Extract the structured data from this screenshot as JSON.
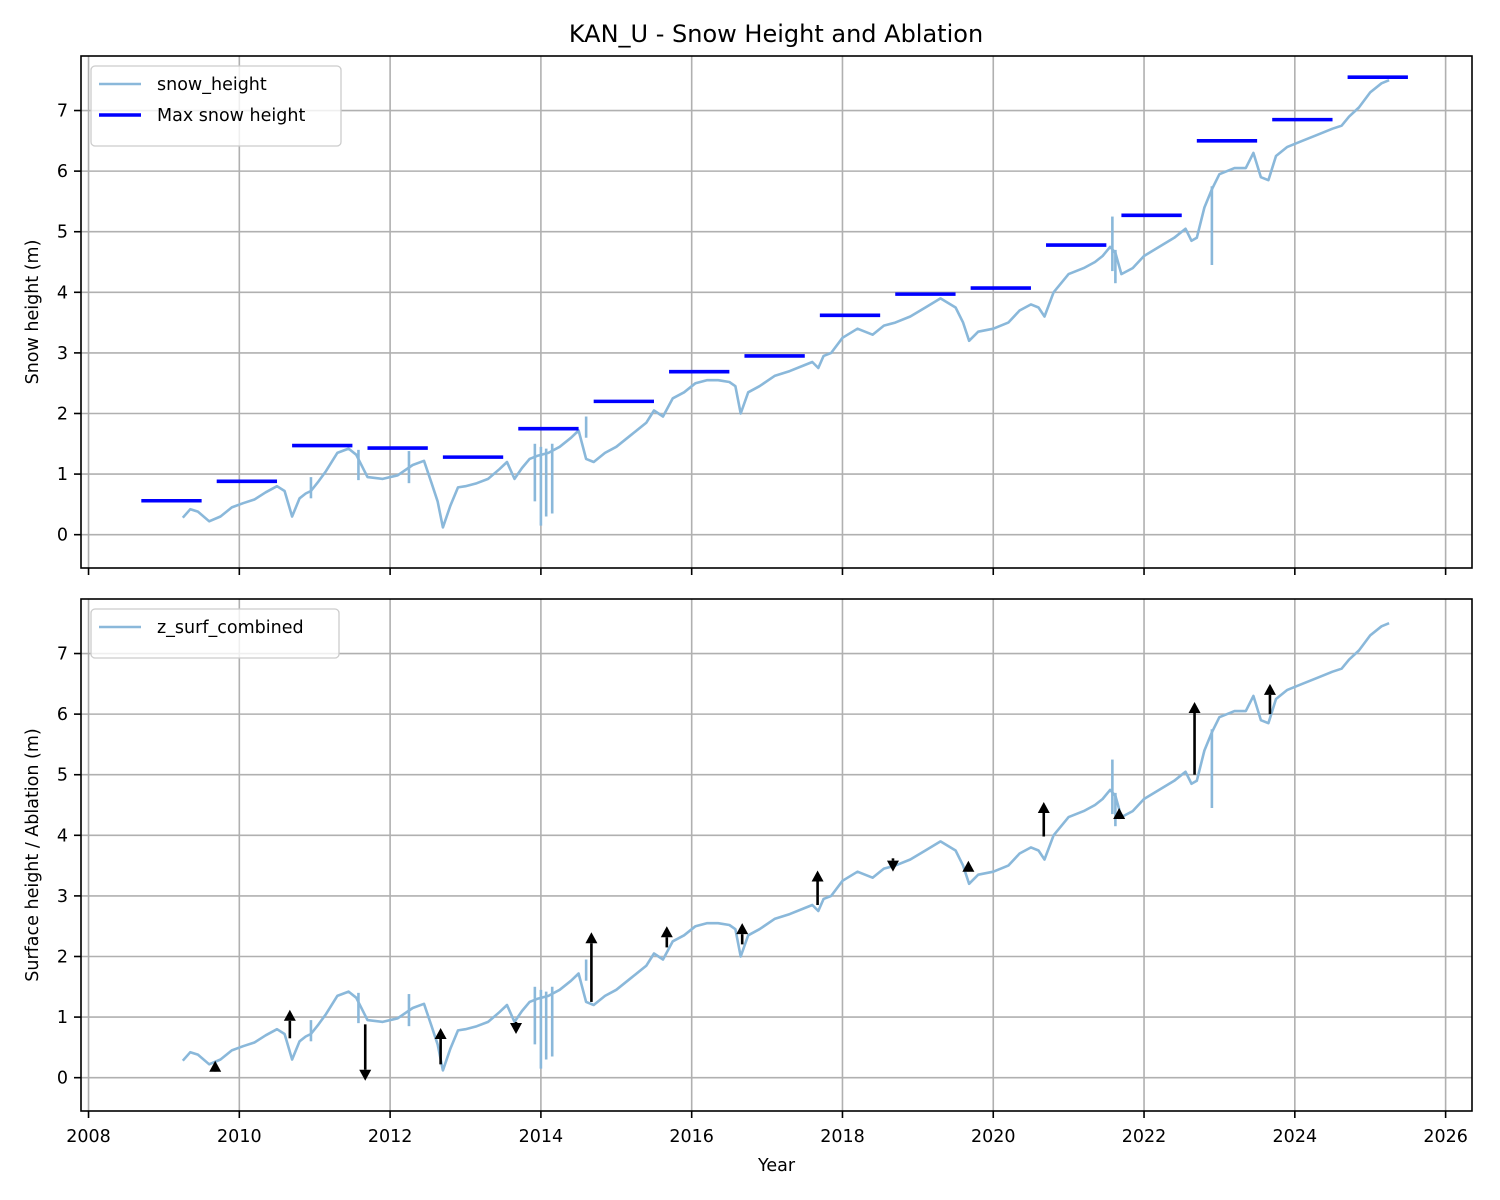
{
  "title": "KAN_U - Snow Height and Ablation",
  "chart_data": [
    {
      "type": "line",
      "title": "KAN_U - Snow Height and Ablation",
      "xlabel": "",
      "ylabel": "Snow height (m)",
      "xlim": [
        2007.9,
        2026.35
      ],
      "ylim": [
        -0.55,
        7.9
      ],
      "xticks": [
        2008,
        2010,
        2012,
        2014,
        2016,
        2018,
        2020,
        2022,
        2024,
        2026
      ],
      "xtick_labels_shown": false,
      "yticks": [
        0,
        1,
        2,
        3,
        4,
        5,
        6,
        7
      ],
      "grid": true,
      "legend": {
        "position": "upper-left",
        "entries": [
          "snow_height",
          "Max snow height"
        ]
      },
      "colors": {
        "snow_height": "#8ab8da",
        "max_snow_height": "#0000ff"
      },
      "series": [
        {
          "name": "snow_height",
          "x": [
            2009.25,
            2009.35,
            2009.45,
            2009.6,
            2009.75,
            2009.9,
            2010.05,
            2010.2,
            2010.35,
            2010.5,
            2010.6,
            2010.7,
            2010.8,
            2010.88,
            2010.95,
            2011.05,
            2011.15,
            2011.3,
            2011.45,
            2011.55,
            2011.7,
            2011.9,
            2012.1,
            2012.3,
            2012.45,
            2012.55,
            2012.63,
            2012.7,
            2012.8,
            2012.9,
            2013.0,
            2013.15,
            2013.3,
            2013.45,
            2013.55,
            2013.65,
            2013.75,
            2013.85,
            2013.95,
            2014.1,
            2014.25,
            2014.4,
            2014.5,
            2014.6,
            2014.7,
            2014.85,
            2015.0,
            2015.2,
            2015.4,
            2015.5,
            2015.62,
            2015.75,
            2015.9,
            2016.05,
            2016.2,
            2016.35,
            2016.5,
            2016.58,
            2016.65,
            2016.75,
            2016.9,
            2017.1,
            2017.3,
            2017.5,
            2017.6,
            2017.68,
            2017.75,
            2017.85,
            2018.0,
            2018.2,
            2018.4,
            2018.55,
            2018.7,
            2018.9,
            2019.1,
            2019.3,
            2019.5,
            2019.6,
            2019.68,
            2019.8,
            2020.0,
            2020.2,
            2020.35,
            2020.5,
            2020.6,
            2020.68,
            2020.8,
            2021.0,
            2021.2,
            2021.35,
            2021.45,
            2021.55,
            2021.62,
            2021.7,
            2021.85,
            2022.0,
            2022.2,
            2022.4,
            2022.55,
            2022.63,
            2022.7,
            2022.8,
            2022.9,
            2023.0,
            2023.2,
            2023.35,
            2023.45,
            2023.55,
            2023.65,
            2023.75,
            2023.9,
            2024.1,
            2024.3,
            2024.5,
            2024.62,
            2024.72,
            2024.85,
            2025.0,
            2025.15,
            2025.25
          ],
          "y": [
            0.28,
            0.42,
            0.38,
            0.22,
            0.3,
            0.45,
            0.52,
            0.58,
            0.7,
            0.8,
            0.72,
            0.3,
            0.6,
            0.68,
            0.72,
            0.88,
            1.05,
            1.35,
            1.42,
            1.32,
            0.95,
            0.92,
            0.98,
            1.15,
            1.22,
            0.85,
            0.55,
            0.12,
            0.48,
            0.78,
            0.8,
            0.85,
            0.92,
            1.08,
            1.2,
            0.92,
            1.1,
            1.25,
            1.3,
            1.35,
            1.45,
            1.6,
            1.72,
            1.25,
            1.2,
            1.35,
            1.45,
            1.65,
            1.85,
            2.05,
            1.95,
            2.25,
            2.35,
            2.5,
            2.55,
            2.55,
            2.52,
            2.45,
            2.0,
            2.35,
            2.45,
            2.62,
            2.7,
            2.8,
            2.85,
            2.75,
            2.95,
            3.0,
            3.25,
            3.4,
            3.3,
            3.45,
            3.5,
            3.6,
            3.75,
            3.9,
            3.75,
            3.5,
            3.2,
            3.35,
            3.4,
            3.5,
            3.7,
            3.8,
            3.75,
            3.6,
            4.0,
            4.3,
            4.4,
            4.5,
            4.6,
            4.75,
            4.65,
            4.3,
            4.4,
            4.6,
            4.75,
            4.9,
            5.05,
            4.85,
            4.9,
            5.4,
            5.7,
            5.95,
            6.05,
            6.05,
            6.3,
            5.9,
            5.85,
            6.25,
            6.4,
            6.5,
            6.6,
            6.7,
            6.75,
            6.9,
            7.05,
            7.3,
            7.45,
            7.5
          ],
          "spikes": [
            {
              "x": 2010.95,
              "low": 0.6,
              "high": 0.95
            },
            {
              "x": 2011.58,
              "low": 0.9,
              "high": 1.4
            },
            {
              "x": 2012.25,
              "low": 0.85,
              "high": 1.38
            },
            {
              "x": 2013.92,
              "low": 0.55,
              "high": 1.5
            },
            {
              "x": 2014.0,
              "low": 0.15,
              "high": 1.45
            },
            {
              "x": 2014.07,
              "low": 0.3,
              "high": 1.42
            },
            {
              "x": 2014.15,
              "low": 0.35,
              "high": 1.5
            },
            {
              "x": 2014.6,
              "low": 1.6,
              "high": 1.95
            },
            {
              "x": 2021.58,
              "low": 4.35,
              "high": 5.25
            },
            {
              "x": 2021.62,
              "low": 4.15,
              "high": 4.7
            },
            {
              "x": 2022.9,
              "low": 4.45,
              "high": 5.75
            }
          ]
        },
        {
          "name": "Max snow height",
          "segments": [
            {
              "start": 2008.7,
              "end": 2009.5,
              "y": 0.56
            },
            {
              "start": 2009.7,
              "end": 2010.5,
              "y": 0.88
            },
            {
              "start": 2010.7,
              "end": 2011.5,
              "y": 1.47
            },
            {
              "start": 2011.7,
              "end": 2012.5,
              "y": 1.43
            },
            {
              "start": 2012.7,
              "end": 2013.5,
              "y": 1.28
            },
            {
              "start": 2013.7,
              "end": 2014.5,
              "y": 1.75
            },
            {
              "start": 2014.7,
              "end": 2015.5,
              "y": 2.2
            },
            {
              "start": 2015.7,
              "end": 2016.5,
              "y": 2.69
            },
            {
              "start": 2016.7,
              "end": 2017.5,
              "y": 2.95
            },
            {
              "start": 2017.7,
              "end": 2018.5,
              "y": 3.62
            },
            {
              "start": 2018.7,
              "end": 2019.5,
              "y": 3.97
            },
            {
              "start": 2019.7,
              "end": 2020.5,
              "y": 4.07
            },
            {
              "start": 2020.7,
              "end": 2021.5,
              "y": 4.78
            },
            {
              "start": 2021.7,
              "end": 2022.5,
              "y": 5.27
            },
            {
              "start": 2022.7,
              "end": 2023.5,
              "y": 6.5
            },
            {
              "start": 2023.7,
              "end": 2024.5,
              "y": 6.85
            },
            {
              "start": 2024.7,
              "end": 2025.5,
              "y": 7.55
            }
          ]
        }
      ]
    },
    {
      "type": "line",
      "title": "",
      "xlabel": "Year",
      "ylabel": "Surface height / Ablation (m)",
      "xlim": [
        2007.9,
        2026.35
      ],
      "ylim": [
        -0.55,
        7.9
      ],
      "xticks": [
        2008,
        2010,
        2012,
        2014,
        2016,
        2018,
        2020,
        2022,
        2024,
        2026
      ],
      "yticks": [
        0,
        1,
        2,
        3,
        4,
        5,
        6,
        7
      ],
      "grid": true,
      "legend": {
        "position": "upper-left",
        "entries": [
          "z_surf_combined"
        ]
      },
      "colors": {
        "z_surf_combined": "#8ab8da",
        "arrows": "#000000"
      },
      "series": [
        {
          "name": "z_surf_combined",
          "same_as": "snow_height"
        }
      ],
      "arrows": [
        {
          "x": 2009.68,
          "from": 0.1,
          "to": 0.28
        },
        {
          "x": 2010.67,
          "from": 0.65,
          "to": 1.12
        },
        {
          "x": 2011.67,
          "from": 0.88,
          "to": -0.05
        },
        {
          "x": 2012.67,
          "from": 0.22,
          "to": 0.82
        },
        {
          "x": 2013.67,
          "from": 0.92,
          "to": 0.72
        },
        {
          "x": 2014.67,
          "from": 1.25,
          "to": 2.4
        },
        {
          "x": 2015.67,
          "from": 2.15,
          "to": 2.5
        },
        {
          "x": 2016.67,
          "from": 2.2,
          "to": 2.55
        },
        {
          "x": 2017.67,
          "from": 2.85,
          "to": 3.42
        },
        {
          "x": 2018.67,
          "from": 3.62,
          "to": 3.4
        },
        {
          "x": 2019.67,
          "from": 3.4,
          "to": 3.58
        },
        {
          "x": 2020.67,
          "from": 3.98,
          "to": 4.55
        },
        {
          "x": 2021.67,
          "from": 4.28,
          "to": 4.45
        },
        {
          "x": 2022.67,
          "from": 5.0,
          "to": 6.2
        },
        {
          "x": 2023.67,
          "from": 6.0,
          "to": 6.5
        }
      ]
    }
  ]
}
